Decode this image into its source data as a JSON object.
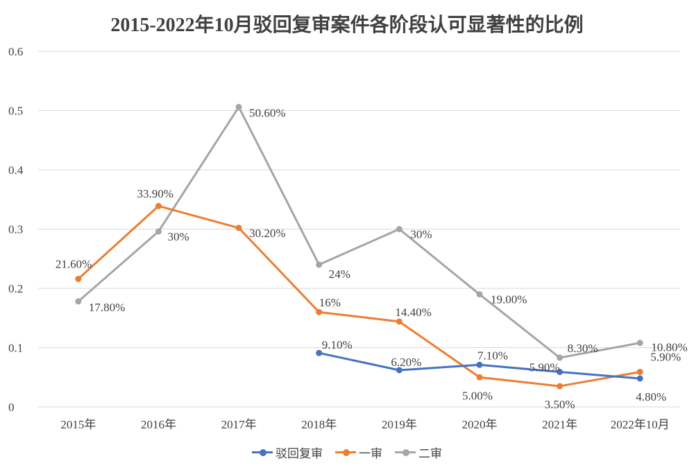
{
  "chart_data": {
    "type": "line",
    "title": "2015-2022年10月驳回复审案件各阶段认可显著性的比例",
    "categories": [
      "2015年",
      "2016年",
      "2017年",
      "2018年",
      "2019年",
      "2020年",
      "2021年",
      "2022年10月"
    ],
    "ylim": [
      0,
      0.6
    ],
    "yticks": [
      "0",
      "0.1",
      "0.2",
      "0.3",
      "0.4",
      "0.5",
      "0.6"
    ],
    "grid": true,
    "legend": "bottom",
    "series": [
      {
        "name": "驳回复审",
        "color": "#4472C4",
        "values": [
          null,
          null,
          null,
          0.091,
          0.062,
          0.071,
          0.059,
          0.048
        ],
        "labels": [
          null,
          null,
          null,
          "9.10%",
          "6.20%",
          "7.10%",
          "5.90%",
          "4.80%"
        ]
      },
      {
        "name": "一审",
        "color": "#ED7D31",
        "values": [
          0.216,
          0.339,
          0.302,
          0.16,
          0.144,
          0.05,
          0.035,
          0.059
        ],
        "labels": [
          "21.60%",
          "33.90%",
          "30.20%",
          "16%",
          "14.40%",
          "5.00%",
          "3.50%",
          "5.90%"
        ]
      },
      {
        "name": "二审",
        "color": "#A5A5A5",
        "values": [
          0.178,
          0.296,
          0.506,
          0.24,
          0.3,
          0.19,
          0.083,
          0.108
        ],
        "labels": [
          "17.80%",
          "30%",
          "50.60%",
          "24%",
          "30%",
          "19.00%",
          "8.30%",
          "10.80%"
        ]
      }
    ]
  }
}
